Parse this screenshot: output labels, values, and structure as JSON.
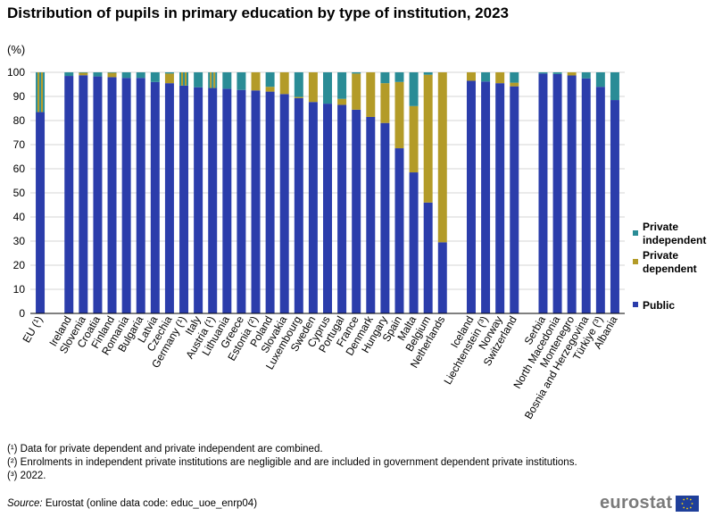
{
  "title": "Distribution of pupils in primary education by type of institution, 2023",
  "unit": "(%)",
  "colors": {
    "public": "#2b3dab",
    "private_dependent": "#b39b28",
    "private_independent": "#2a8c96"
  },
  "chart_data": {
    "type": "bar",
    "stacked": true,
    "ylim": [
      0,
      100
    ],
    "yticks": [
      0,
      10,
      20,
      30,
      40,
      50,
      60,
      70,
      80,
      90,
      100
    ],
    "grid": true,
    "legend_position": "right",
    "categories": [
      "EU (¹)",
      "Ireland",
      "Slovenia",
      "Croatia",
      "Finland",
      "Romania",
      "Bulgaria",
      "Latvia",
      "Czechia",
      "Germany (¹)",
      "Italy",
      "Austria (¹)",
      "Lithuania",
      "Greece",
      "Estonia (²)",
      "Poland",
      "Slovakia",
      "Luxembourg",
      "Sweden",
      "Cyprus",
      "Portugal",
      "France",
      "Denmark",
      "Hungary",
      "Spain",
      "Malta",
      "Belgium",
      "Netherlands",
      "Iceland",
      "Liechtenstein (³)",
      "Norway",
      "Switzerland",
      "Serbia",
      "North Macedonia",
      "Montenegro",
      "Bosnia and Herzegovina",
      "Türkiye (³)",
      "Albania"
    ],
    "groups": [
      1,
      27,
      4,
      6
    ],
    "series": [
      {
        "name": "Public",
        "values": [
          83.5,
          98.5,
          98.8,
          98.3,
          98.0,
          97.7,
          97.7,
          96.0,
          95.5,
          94.5,
          93.8,
          93.5,
          93.2,
          92.7,
          92.5,
          92.0,
          91.0,
          89.3,
          87.7,
          87.0,
          86.5,
          84.5,
          81.5,
          79.0,
          68.5,
          58.5,
          46.0,
          29.5,
          96.5,
          96.2,
          95.5,
          94.2,
          99.5,
          99.3,
          98.7,
          97.5,
          94.0,
          88.5
        ]
      },
      {
        "name": "Private dependent",
        "values": [
          0,
          0,
          1.0,
          0,
          1.8,
          0,
          0,
          0,
          4.0,
          0,
          0,
          0,
          0,
          0,
          7.5,
          2.0,
          9.0,
          0.5,
          12.3,
          0,
          2.5,
          15.0,
          18.5,
          16.5,
          27.5,
          27.5,
          53.0,
          70.5,
          3.5,
          0,
          4.5,
          1.5,
          0,
          0,
          1.3,
          0,
          0,
          0
        ]
      },
      {
        "name": "Private independent",
        "values": [
          16.5,
          1.5,
          0.2,
          1.7,
          0.2,
          2.3,
          2.3,
          4.0,
          0.5,
          5.5,
          6.2,
          6.5,
          6.8,
          7.3,
          0,
          6.0,
          0,
          10.2,
          0,
          13.0,
          11.0,
          0.5,
          0,
          4.5,
          4.0,
          14.0,
          1.0,
          0,
          0,
          3.8,
          0,
          4.3,
          0.5,
          0.7,
          0,
          2.5,
          6.0,
          11.5
        ]
      }
    ],
    "combined_series": {
      "name_index": [
        1,
        2
      ],
      "categories": [
        "EU (¹)",
        "Germany (¹)",
        "Austria (¹)"
      ]
    },
    "legend": [
      "Private independent",
      "Private dependent",
      "Public"
    ]
  },
  "footnotes": [
    "(¹) Data for private dependent and private independent are combined.",
    "(²) Enrolments in independent private institutions are negligible and are included in government dependent private institutions.",
    "(³) 2022."
  ],
  "source": {
    "label": "Source:",
    "text": " Eurostat (online data code: educ_uoe_enrp04)"
  },
  "logo_text": "eurostat"
}
